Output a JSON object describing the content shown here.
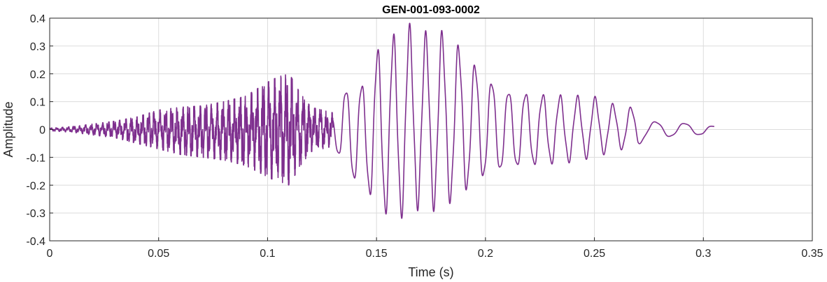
{
  "chart_data": {
    "type": "line",
    "title": "GEN-001-093-0002",
    "xlabel": "Time (s)",
    "ylabel": "Amplitude",
    "xlim": [
      0,
      0.35
    ],
    "ylim": [
      -0.4,
      0.4
    ],
    "x_ticks": [
      "0",
      "0.05",
      "0.1",
      "0.15",
      "0.2",
      "0.25",
      "0.3",
      "0.35"
    ],
    "y_ticks": [
      "-0.4",
      "-0.3",
      "-0.2",
      "-0.1",
      "0",
      "0.1",
      "0.2",
      "0.3",
      "0.4"
    ],
    "grid": true,
    "line_color": "#7E2F8E",
    "series": [
      {
        "envelope": {
          "t": [
            0,
            0.01,
            0.02,
            0.03,
            0.04,
            0.05,
            0.06,
            0.07,
            0.08,
            0.09,
            0.1,
            0.105,
            0.11,
            0.115,
            0.12,
            0.125,
            0.13,
            0.135,
            0.14,
            0.145,
            0.15,
            0.155,
            0.16,
            0.165,
            0.17,
            0.175,
            0.18,
            0.185,
            0.19,
            0.195,
            0.2,
            0.21,
            0.22,
            0.23,
            0.24,
            0.25,
            0.26,
            0.27,
            0.275,
            0.28,
            0.29,
            0.3,
            0.305
          ],
          "max": [
            0.005,
            0.01,
            0.02,
            0.03,
            0.045,
            0.07,
            0.08,
            0.085,
            0.1,
            0.12,
            0.17,
            0.19,
            0.2,
            0.13,
            0.08,
            0.07,
            0.06,
            0.15,
            0.17,
            0.18,
            0.3,
            0.34,
            0.36,
            0.385,
            0.35,
            0.36,
            0.36,
            0.33,
            0.3,
            0.25,
            0.2,
            0.15,
            0.14,
            0.13,
            0.125,
            0.12,
            0.09,
            0.08,
            0.03,
            0.03,
            0.025,
            0.02,
            0.012
          ],
          "min": [
            -0.005,
            -0.01,
            -0.02,
            -0.03,
            -0.05,
            -0.07,
            -0.09,
            -0.1,
            -0.11,
            -0.13,
            -0.17,
            -0.19,
            -0.2,
            -0.13,
            -0.08,
            -0.07,
            -0.06,
            -0.14,
            -0.2,
            -0.22,
            -0.3,
            -0.32,
            -0.335,
            -0.3,
            -0.29,
            -0.3,
            -0.285,
            -0.27,
            -0.24,
            -0.21,
            -0.18,
            -0.15,
            -0.14,
            -0.13,
            -0.12,
            -0.1,
            -0.08,
            -0.06,
            -0.03,
            -0.03,
            -0.025,
            -0.02,
            -0.005
          ]
        }
      }
    ]
  }
}
